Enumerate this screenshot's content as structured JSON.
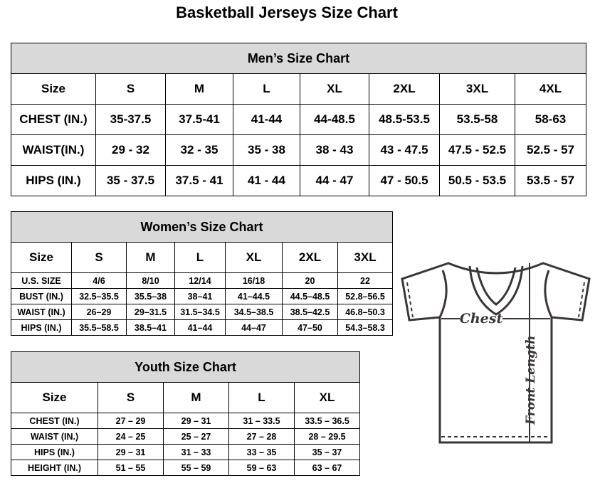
{
  "title": "Basketball Jerseys Size Chart",
  "men": {
    "title": "Men’s Size Chart",
    "header": [
      "Size",
      "S",
      "M",
      "L",
      "XL",
      "2XL",
      "3XL",
      "4XL"
    ],
    "rows": [
      [
        "CHEST (IN.)",
        "35-37.5",
        "37.5-41",
        "41-44",
        "44-48.5",
        "48.5-53.5",
        "53.5-58",
        "58-63"
      ],
      [
        "WAIST(IN.)",
        "29 - 32",
        "32 - 35",
        "35 - 38",
        "38 - 43",
        "43 - 47.5",
        "47.5 - 52.5",
        "52.5 - 57"
      ],
      [
        "HIPS (IN.)",
        "35 - 37.5",
        "37.5 - 41",
        "41 - 44",
        "44 - 47",
        "47 - 50.5",
        "50.5 - 53.5",
        "53.5 - 57"
      ]
    ]
  },
  "women": {
    "title": "Women’s Size Chart",
    "header": [
      "Size",
      "S",
      "M",
      "L",
      "XL",
      "2XL",
      "3XL"
    ],
    "rows": [
      [
        "U.S.  SIZE",
        "4/6",
        "8/10",
        "12/14",
        "16/18",
        "20",
        "22"
      ],
      [
        "BUST  (IN.)",
        "32.5–35.5",
        "35.5–38",
        "38–41",
        "41–44.5",
        "44.5–48.5",
        "52.8–56.5"
      ],
      [
        "WAIST  (IN.)",
        "26–29",
        "29–31.5",
        "31.5–34.5",
        "34.5–38.5",
        "38.5–42.5",
        "46.8–50.3"
      ],
      [
        "HIPS  (IN.)",
        "35.5–58.5",
        "38.5–41",
        "41–44",
        "44–47",
        "47–50",
        "54.3–58.3"
      ]
    ]
  },
  "youth": {
    "title": "Youth Size Chart",
    "header": [
      "Size",
      "S",
      "M",
      "L",
      "XL"
    ],
    "rows": [
      [
        "CHEST  (IN.)",
        "27  –  29",
        "29  –  31",
        "31  –  33.5",
        "33.5  –  36.5"
      ],
      [
        "WAIST  (IN.)",
        "24  –  25",
        "25  –  27",
        "27  –  28",
        "28  –  29.5"
      ],
      [
        "HIPS  (IN.)",
        "29  –  31",
        "31  –  33",
        "33  –  35",
        "35  –  37"
      ],
      [
        "HEIGHT  (IN.)",
        "51  –  55",
        "55  –  59",
        "59  –  63",
        "63  –  67"
      ]
    ]
  },
  "diagram": {
    "chest_label": "Chest",
    "length_label": "Front Length",
    "outline_color": "#3a3536"
  }
}
